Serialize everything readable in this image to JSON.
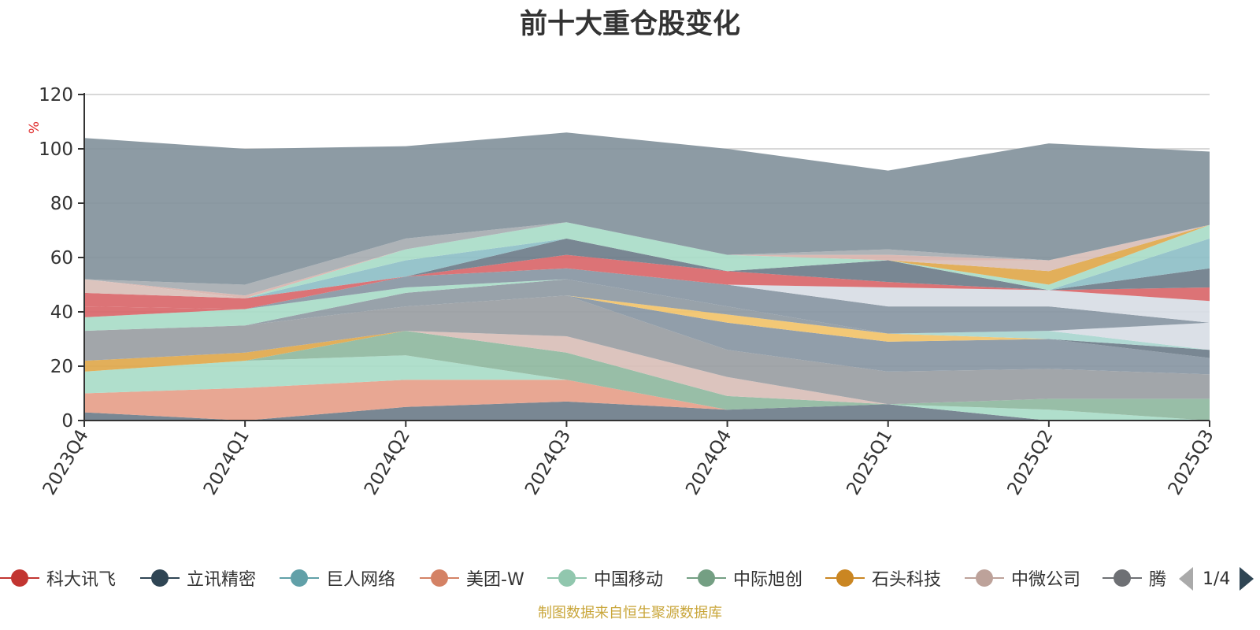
{
  "chart_data": {
    "type": "area",
    "title": "前十大重仓股变化",
    "ylabel": "%",
    "ylim": [
      0,
      120
    ],
    "yticks": [
      0,
      20,
      40,
      60,
      80,
      100,
      120
    ],
    "grid": true,
    "stacked": true,
    "legend_position": "bottom",
    "categories": [
      "2023Q4",
      "2024Q1",
      "2024Q2",
      "2024Q3",
      "2024Q4",
      "2025Q1",
      "2025Q2",
      "2025Q3"
    ],
    "series": [
      {
        "name": "",
        "color": "#6e7d8a",
        "values": [
          3,
          0,
          5,
          7,
          4,
          6,
          0,
          0
        ]
      },
      {
        "name": "",
        "color": "#e6a08a",
        "values": [
          7,
          12,
          10,
          8,
          0,
          0,
          0,
          0
        ]
      },
      {
        "name": "",
        "color": "#a9dcc8",
        "values": [
          8,
          10,
          9,
          0,
          0,
          0,
          4,
          0
        ]
      },
      {
        "name": "",
        "color": "#8fb89f",
        "values": [
          0,
          0,
          9,
          10,
          5,
          0,
          4,
          8
        ]
      },
      {
        "name": "",
        "color": "#d9bfb8",
        "values": [
          0,
          0,
          0,
          6,
          7,
          0,
          0,
          0
        ]
      },
      {
        "name": "",
        "color": "#e0a84c",
        "values": [
          4,
          3,
          0,
          0,
          0,
          0,
          0,
          0
        ]
      },
      {
        "name": "",
        "color": "#9a9ea3",
        "values": [
          11,
          10,
          9,
          15,
          10,
          12,
          11,
          9
        ]
      },
      {
        "name": "",
        "color": "#8896a3",
        "values": [
          0,
          0,
          0,
          0,
          10,
          11,
          11,
          6
        ]
      },
      {
        "name": "",
        "color": "#6e7d8a",
        "values": [
          0,
          0,
          0,
          0,
          0,
          0,
          0,
          3
        ]
      },
      {
        "name": "",
        "color": "#f2c36a",
        "values": [
          0,
          0,
          0,
          0,
          3,
          3,
          0,
          0
        ]
      },
      {
        "name": "",
        "color": "#a9d6cf",
        "values": [
          0,
          0,
          0,
          0,
          0,
          0,
          3,
          0
        ]
      },
      {
        "name": "",
        "color": "#d8dde5",
        "values": [
          0,
          0,
          0,
          0,
          0,
          0,
          0,
          10
        ]
      },
      {
        "name": "",
        "color": "#8896a3",
        "values": [
          0,
          0,
          0,
          0,
          0,
          0,
          0,
          0
        ]
      },
      {
        "name": "",
        "color": "#8f9aa3",
        "values": [
          0,
          0,
          5,
          6,
          3,
          0,
          0,
          0
        ]
      },
      {
        "name": "",
        "color": "#a9dcc8",
        "values": [
          5,
          6,
          2,
          0,
          0,
          0,
          0,
          0
        ]
      },
      {
        "name": "",
        "color": "#d9676a",
        "values": [
          4,
          0,
          0,
          0,
          0,
          0,
          0,
          0
        ]
      },
      {
        "name": "",
        "color": "#8896a3",
        "values": [
          0,
          0,
          4,
          4,
          8,
          10,
          9,
          0
        ]
      },
      {
        "name": "",
        "color": "#d8dde5",
        "values": [
          0,
          0,
          0,
          0,
          0,
          7,
          6,
          8
        ]
      },
      {
        "name": "",
        "color": "#d9676a",
        "values": [
          5,
          4,
          0,
          5,
          5,
          2,
          0,
          5
        ]
      },
      {
        "name": "",
        "color": "#6e7d8a",
        "values": [
          0,
          0,
          0,
          6,
          0,
          8,
          0,
          7
        ]
      },
      {
        "name": "",
        "color": "#8ebfc7",
        "values": [
          0,
          0,
          6,
          0,
          0,
          0,
          0,
          11
        ]
      },
      {
        "name": "",
        "color": "#a9dcc8",
        "values": [
          0,
          0,
          4,
          6,
          6,
          0,
          2,
          5
        ]
      },
      {
        "name": "",
        "color": "#e0a84c",
        "values": [
          0,
          0,
          0,
          0,
          0,
          0,
          5,
          0
        ]
      },
      {
        "name": "",
        "color": "#d9bfb8",
        "values": [
          5,
          0,
          0,
          0,
          0,
          0,
          4,
          0
        ]
      },
      {
        "name": "",
        "color": "#d8b4ae",
        "values": [
          0,
          1,
          0,
          0,
          0,
          2,
          0,
          0
        ]
      },
      {
        "name": "",
        "color": "#a7acb1",
        "values": [
          0,
          4,
          4,
          0,
          0,
          2,
          0,
          0
        ]
      },
      {
        "name": "",
        "color": "#83939c",
        "values": [
          52,
          50,
          34,
          33,
          39,
          29,
          43,
          27
        ]
      }
    ]
  },
  "legend": {
    "items": [
      {
        "label": "科大讯飞",
        "color": "#c23531"
      },
      {
        "label": "立讯精密",
        "color": "#2f4554"
      },
      {
        "label": "巨人网络",
        "color": "#61a0a8"
      },
      {
        "label": "美团-W",
        "color": "#d48265"
      },
      {
        "label": "中国移动",
        "color": "#91c7ae"
      },
      {
        "label": "中际旭创",
        "color": "#749f83"
      },
      {
        "label": "石头科技",
        "color": "#ca8622"
      },
      {
        "label": "中微公司",
        "color": "#bda29a"
      },
      {
        "label": "腾",
        "color": "#6e7074"
      }
    ],
    "page_indicator": "1/4"
  },
  "source_note": "制图数据来自恒生聚源数据库"
}
